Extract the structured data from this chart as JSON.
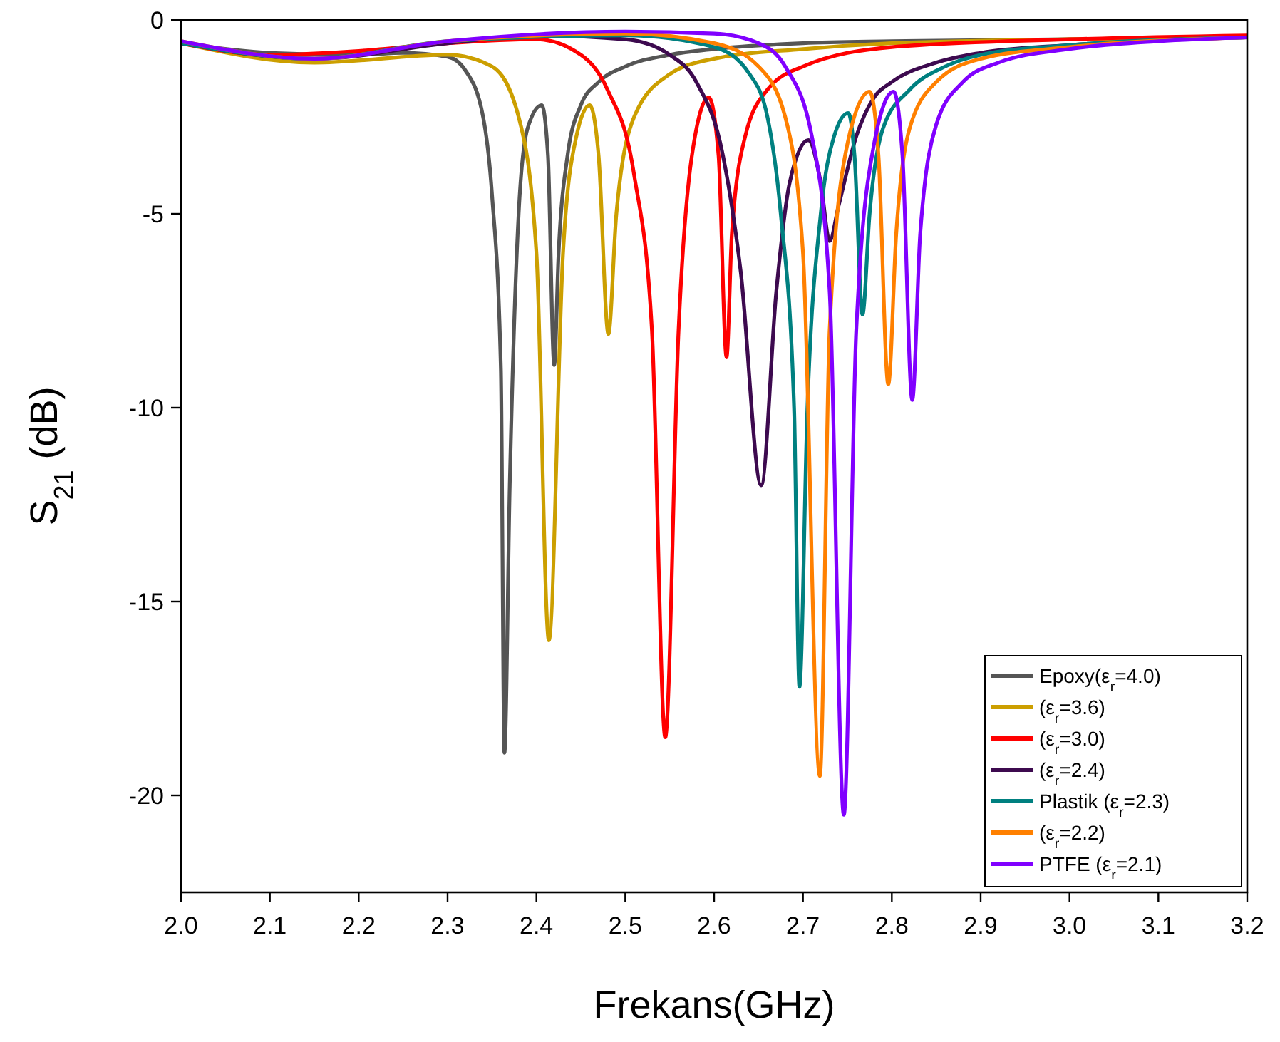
{
  "chart_data": {
    "type": "line",
    "xlabel": "Frekans(GHz)",
    "ylabel": "S$_{21}$ (dB)",
    "xlim": [
      2.0,
      3.2
    ],
    "ylim": [
      -22.5,
      0
    ],
    "xticks": [
      {
        "value": 2.0,
        "label": "2.0"
      },
      {
        "value": 2.1,
        "label": "2.1"
      },
      {
        "value": 2.2,
        "label": "2.2"
      },
      {
        "value": 2.3,
        "label": "2.3"
      },
      {
        "value": 2.4,
        "label": "2.4"
      },
      {
        "value": 2.5,
        "label": "2.5"
      },
      {
        "value": 2.6,
        "label": "2.6"
      },
      {
        "value": 2.7,
        "label": "2.7"
      },
      {
        "value": 2.8,
        "label": "2.8"
      },
      {
        "value": 2.9,
        "label": "2.9"
      },
      {
        "value": 3.0,
        "label": "3.0"
      },
      {
        "value": 3.1,
        "label": "3.1"
      },
      {
        "value": 3.2,
        "label": "3.2"
      }
    ],
    "yticks": [
      0,
      -5,
      -10,
      -15,
      -20
    ],
    "grid": false,
    "legend": "bottom right",
    "marker": "none",
    "line_style": "solid",
    "series": [
      {
        "name": "Epoxy(ε$_{r}$=4.0)",
        "color": "#555555",
        "x": [
          2.0,
          2.1,
          2.2,
          2.25,
          2.3,
          2.32,
          2.34,
          2.35,
          2.36,
          2.364,
          2.37,
          2.38,
          2.39,
          2.406,
          2.413,
          2.42,
          2.425,
          2.435,
          2.45,
          2.47,
          2.5,
          2.55,
          2.6,
          2.7,
          2.8,
          3.0,
          3.2
        ],
        "values": [
          -0.6,
          -0.85,
          -0.9,
          -0.85,
          -0.95,
          -1.3,
          -2.5,
          -4.5,
          -9,
          -18.9,
          -12,
          -5,
          -2.8,
          -2.2,
          -3.5,
          -8.9,
          -6,
          -3.5,
          -2.2,
          -1.6,
          -1.2,
          -0.9,
          -0.75,
          -0.6,
          -0.55,
          -0.5,
          -0.45
        ]
      },
      {
        "name": "(ε$_{r}$=3.6)",
        "color": "#cc9f00",
        "x": [
          2.0,
          2.15,
          2.3,
          2.35,
          2.38,
          2.4,
          2.414,
          2.43,
          2.445,
          2.46,
          2.47,
          2.481,
          2.49,
          2.51,
          2.55,
          2.6,
          2.7,
          2.8,
          3.0,
          3.2
        ],
        "values": [
          -0.6,
          -1.1,
          -0.9,
          -1.2,
          -2.5,
          -6,
          -16,
          -6,
          -3,
          -2.2,
          -3.5,
          -8.1,
          -5,
          -2.5,
          -1.4,
          -1.0,
          -0.75,
          -0.6,
          -0.5,
          -0.45
        ]
      },
      {
        "name": "(ε$_{r}$=3.0)",
        "color": "#ff0000",
        "x": [
          2.0,
          2.1,
          2.2,
          2.3,
          2.4,
          2.45,
          2.48,
          2.51,
          2.53,
          2.545,
          2.56,
          2.575,
          2.594,
          2.605,
          2.614,
          2.62,
          2.635,
          2.66,
          2.7,
          2.8,
          3.0,
          3.2
        ],
        "values": [
          -0.6,
          -0.9,
          -0.8,
          -0.6,
          -0.5,
          -0.9,
          -1.8,
          -4,
          -8,
          -18.5,
          -8,
          -3.5,
          -2.0,
          -3.5,
          -8.7,
          -5.5,
          -3,
          -1.8,
          -1.2,
          -0.7,
          -0.5,
          -0.4
        ]
      },
      {
        "name": "(ε$_{r}$=2.4)",
        "color": "#3d0a4f",
        "x": [
          2.0,
          2.15,
          2.3,
          2.4,
          2.5,
          2.55,
          2.58,
          2.61,
          2.63,
          2.653,
          2.67,
          2.685,
          2.706,
          2.72,
          2.73,
          2.74,
          2.76,
          2.78,
          2.8,
          2.85,
          2.9,
          3.0,
          3.2
        ],
        "values": [
          -0.6,
          -1.0,
          -0.6,
          -0.4,
          -0.5,
          -0.9,
          -1.6,
          -3.5,
          -6.5,
          -12,
          -7,
          -4.2,
          -3.1,
          -4.2,
          -5.7,
          -4.8,
          -3,
          -2.0,
          -1.6,
          -1.1,
          -0.85,
          -0.65,
          -0.45
        ]
      },
      {
        "name": "Plastik (ε$_{r}$=2.3)",
        "color": "#008080",
        "x": [
          2.0,
          2.15,
          2.3,
          2.5,
          2.6,
          2.64,
          2.66,
          2.675,
          2.69,
          2.696,
          2.705,
          2.72,
          2.735,
          2.751,
          2.758,
          2.767,
          2.775,
          2.79,
          2.82,
          2.86,
          2.9,
          3.0,
          3.2
        ],
        "values": [
          -0.6,
          -1.0,
          -0.55,
          -0.4,
          -0.7,
          -1.4,
          -2.5,
          -5,
          -10,
          -17.2,
          -10,
          -5,
          -3,
          -2.4,
          -3.5,
          -7.6,
          -5,
          -2.8,
          -1.8,
          -1.2,
          -0.9,
          -0.65,
          -0.45
        ]
      },
      {
        "name": "(ε$_{r}$=2.2)",
        "color": "#ff8000",
        "x": [
          2.0,
          2.15,
          2.3,
          2.5,
          2.6,
          2.65,
          2.68,
          2.7,
          2.719,
          2.73,
          2.75,
          2.775,
          2.785,
          2.796,
          2.805,
          2.82,
          2.85,
          2.9,
          3.0,
          3.2
        ],
        "values": [
          -0.55,
          -1.0,
          -0.55,
          -0.35,
          -0.6,
          -1.2,
          -2.5,
          -6,
          -19.5,
          -8,
          -3.2,
          -1.85,
          -3.5,
          -9.4,
          -5.5,
          -2.8,
          -1.6,
          -1.0,
          -0.7,
          -0.45
        ]
      },
      {
        "name": "PTFE (ε$_{r}$=2.1)",
        "color": "#8000ff",
        "x": [
          2.0,
          2.15,
          2.3,
          2.5,
          2.6,
          2.65,
          2.68,
          2.71,
          2.73,
          2.746,
          2.76,
          2.78,
          2.802,
          2.812,
          2.823,
          2.832,
          2.85,
          2.88,
          2.92,
          3.0,
          3.1,
          3.2
        ],
        "values": [
          -0.55,
          -1.0,
          -0.55,
          -0.3,
          -0.35,
          -0.6,
          -1.2,
          -3,
          -7,
          -20.5,
          -8,
          -3.2,
          -1.85,
          -3.5,
          -9.8,
          -5.5,
          -2.7,
          -1.6,
          -1.1,
          -0.75,
          -0.55,
          -0.45
        ]
      }
    ]
  }
}
